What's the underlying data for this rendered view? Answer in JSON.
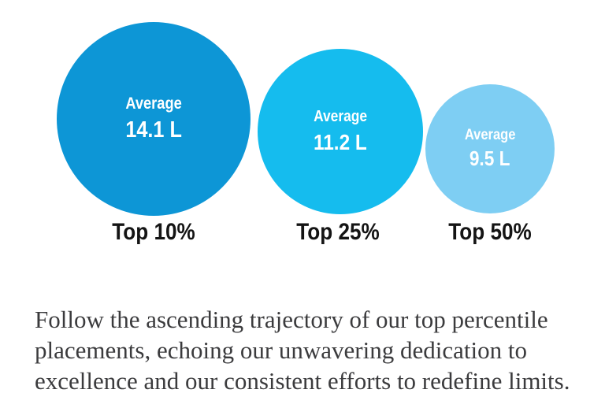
{
  "chart_data": {
    "type": "bubble",
    "title": "",
    "categories": [
      "Top 10%",
      "Top 25%",
      "Top 50%"
    ],
    "series_label": "Average",
    "values": [
      14.1,
      11.2,
      9.5
    ],
    "unit": "L",
    "value_labels": [
      "14.1 L",
      "11.2 L",
      "9.5 L"
    ],
    "colors": [
      "#0d96d6",
      "#15bcee",
      "#7ecef3"
    ],
    "layout": "three circles bottom-aligned left to right, area decreasing with value, category labels below each circle"
  },
  "bubbles": [
    {
      "average_label": "Average",
      "value_label": "14.1 L",
      "category": "Top 10%",
      "color": "#0d96d6"
    },
    {
      "average_label": "Average",
      "value_label": "11.2 L",
      "category": "Top 25%",
      "color": "#15bcee"
    },
    {
      "average_label": "Average",
      "value_label": "9.5 L",
      "category": "Top 50%",
      "color": "#7ecef3"
    }
  ],
  "caption": {
    "lines": [
      "Follow the ascending trajectory of our top percentile",
      "placements, echoing our unwavering dedication to",
      "excellence and our consistent efforts to redefine limits."
    ]
  },
  "colors": {
    "background": "#ffffff",
    "bubble_text": "#ffffff",
    "category_label": "#141414",
    "caption_text": "#3b3b3d"
  }
}
